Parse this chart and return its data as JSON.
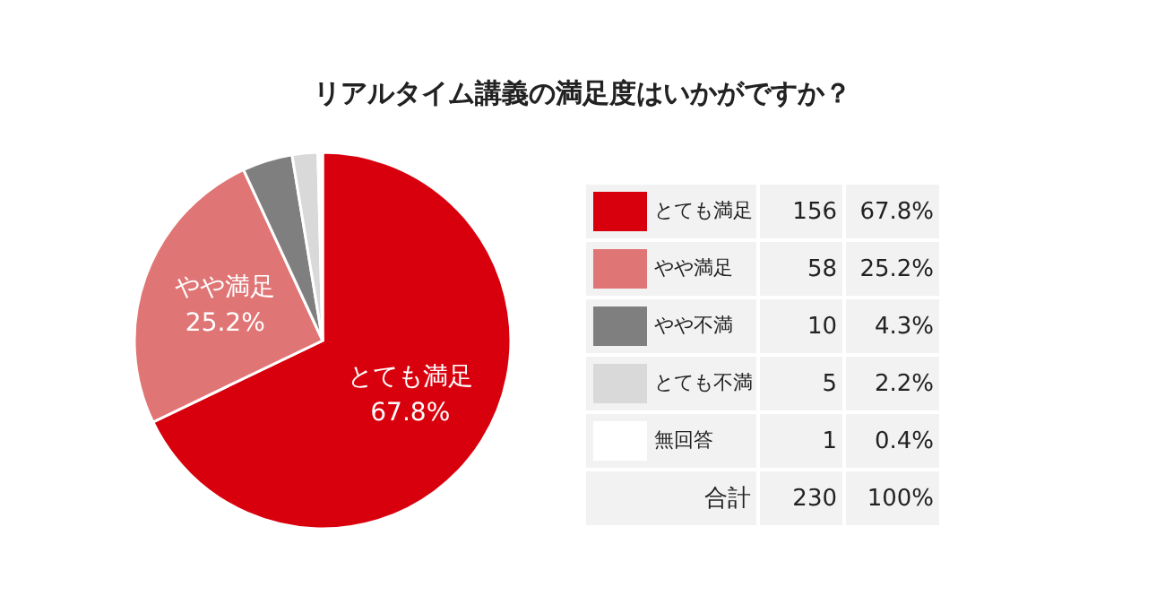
{
  "chart_data": {
    "type": "pie",
    "title": "リアルタイム講義の満足度はいかがですか？",
    "categories": [
      "とても満足",
      "やや満足",
      "やや不満",
      "とても不満",
      "無回答"
    ],
    "values": [
      67.8,
      25.2,
      4.3,
      2.2,
      0.4
    ],
    "colors": [
      "#d9000d",
      "#e07575",
      "#7f7f7f",
      "#d9d9d9",
      "#ffffff"
    ],
    "value_labels": [
      "67.8%",
      "25.2%",
      "4.3%",
      "2.2%",
      "0.4%"
    ],
    "data_labels": true,
    "legend": "right",
    "annotations": [
      "156",
      "58",
      "10",
      "5",
      "1",
      "合計",
      "230",
      "100%"
    ]
  }
}
